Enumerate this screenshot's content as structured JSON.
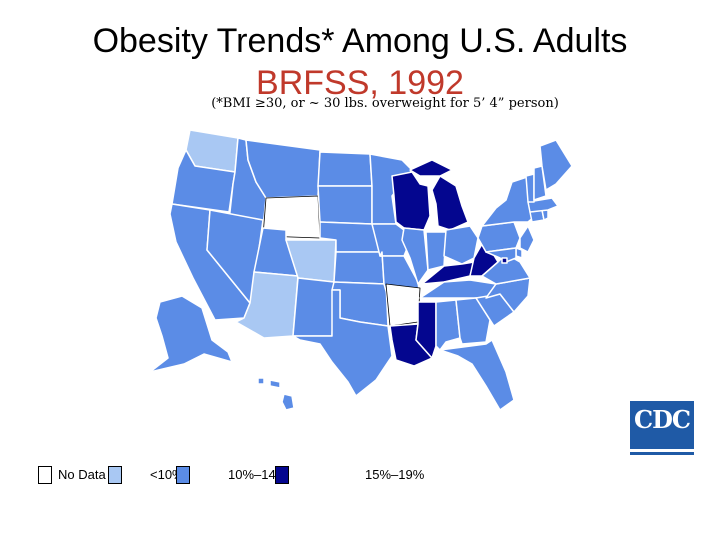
{
  "title": "Obesity Trends* Among U.S. Adults",
  "subtitle": "BRFSS, 1992",
  "note": "(*BMI ≥30, or ~ 30 lbs. overweight for 5’ 4” person)",
  "colors": {
    "no_data": "#ffffff",
    "lt10": "#a9c8f3",
    "10_14": "#5b8ce6",
    "15_19": "#04068f",
    "border": "#ffffff",
    "outline": "#000000"
  },
  "legend": [
    {
      "label": "No Data",
      "class": "no_data"
    },
    {
      "label": "<10%",
      "class": "lt10"
    },
    {
      "label": "10%–14%",
      "class": "10_14"
    },
    {
      "label": "15%–19%",
      "class": "15_19"
    }
  ],
  "states": [
    {
      "name": "WA",
      "class": "lt10"
    },
    {
      "name": "OR",
      "class": "10_14"
    },
    {
      "name": "CA",
      "class": "10_14"
    },
    {
      "name": "ID",
      "class": "10_14"
    },
    {
      "name": "NV",
      "class": "10_14"
    },
    {
      "name": "MT",
      "class": "10_14"
    },
    {
      "name": "WY",
      "class": "no_data"
    },
    {
      "name": "UT",
      "class": "10_14"
    },
    {
      "name": "AZ",
      "class": "lt10"
    },
    {
      "name": "CO",
      "class": "lt10"
    },
    {
      "name": "NM",
      "class": "10_14"
    },
    {
      "name": "ND",
      "class": "10_14"
    },
    {
      "name": "SD",
      "class": "10_14"
    },
    {
      "name": "NE",
      "class": "10_14"
    },
    {
      "name": "KS",
      "class": "10_14"
    },
    {
      "name": "OK",
      "class": "10_14"
    },
    {
      "name": "TX",
      "class": "10_14"
    },
    {
      "name": "MN",
      "class": "10_14"
    },
    {
      "name": "IA",
      "class": "10_14"
    },
    {
      "name": "MO",
      "class": "10_14"
    },
    {
      "name": "AR",
      "class": "no_data"
    },
    {
      "name": "LA",
      "class": "15_19"
    },
    {
      "name": "WI",
      "class": "15_19"
    },
    {
      "name": "IL",
      "class": "10_14"
    },
    {
      "name": "MI",
      "class": "15_19"
    },
    {
      "name": "IN",
      "class": "10_14"
    },
    {
      "name": "OH",
      "class": "10_14"
    },
    {
      "name": "KY",
      "class": "15_19"
    },
    {
      "name": "WV",
      "class": "15_19"
    },
    {
      "name": "TN",
      "class": "10_14"
    },
    {
      "name": "MS",
      "class": "15_19"
    },
    {
      "name": "AL",
      "class": "10_14"
    },
    {
      "name": "GA",
      "class": "10_14"
    },
    {
      "name": "FL",
      "class": "10_14"
    },
    {
      "name": "SC",
      "class": "10_14"
    },
    {
      "name": "NC",
      "class": "10_14"
    },
    {
      "name": "VA",
      "class": "10_14"
    },
    {
      "name": "PA",
      "class": "10_14"
    },
    {
      "name": "NY",
      "class": "10_14"
    },
    {
      "name": "NJ",
      "class": "10_14"
    },
    {
      "name": "DE",
      "class": "10_14"
    },
    {
      "name": "MD",
      "class": "10_14"
    },
    {
      "name": "DC",
      "class": "15_19"
    },
    {
      "name": "CT",
      "class": "10_14"
    },
    {
      "name": "RI",
      "class": "10_14"
    },
    {
      "name": "MA",
      "class": "10_14"
    },
    {
      "name": "VT",
      "class": "10_14"
    },
    {
      "name": "NH",
      "class": "10_14"
    },
    {
      "name": "ME",
      "class": "10_14"
    },
    {
      "name": "AK",
      "class": "10_14"
    },
    {
      "name": "HI",
      "class": "10_14"
    }
  ],
  "logo": {
    "text": "CDC"
  }
}
